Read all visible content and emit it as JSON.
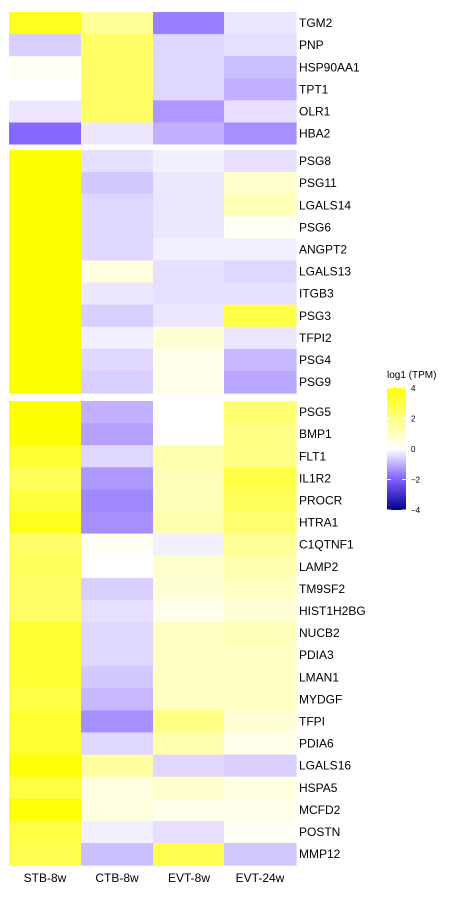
{
  "chart_data": {
    "type": "heatmap",
    "legend_title": "log1 (TPM)",
    "columns": [
      "STB-8w",
      "CTB-8w",
      "EVT-8w",
      "EVT-24w"
    ],
    "legend_ticks": [
      4,
      2,
      0,
      -2,
      -4
    ],
    "value_range": [
      -4,
      4
    ],
    "colors": {
      "low": "#00008b",
      "mid_low": "#8060ff",
      "mid": "#ffffff",
      "high": "#ffff00"
    },
    "groups": [
      {
        "rows": [
          {
            "gene": "TGM2",
            "values": [
              2.2,
              1.0,
              -1.6,
              -0.3
            ]
          },
          {
            "gene": "PNP",
            "values": [
              -0.6,
              1.5,
              -0.5,
              -0.4
            ]
          },
          {
            "gene": "HSP90AA1",
            "values": [
              0.1,
              1.5,
              -0.5,
              -0.8
            ]
          },
          {
            "gene": "TPT1",
            "values": [
              0.0,
              1.5,
              -0.5,
              -1.0
            ]
          },
          {
            "gene": "OLR1",
            "values": [
              -0.3,
              1.5,
              -1.3,
              -0.4
            ]
          },
          {
            "gene": "HBA2",
            "values": [
              -1.9,
              -0.3,
              -1.0,
              -1.4
            ]
          }
        ]
      },
      {
        "rows": [
          {
            "gene": "PSG8",
            "values": [
              3.6,
              -0.4,
              -0.2,
              -0.4
            ]
          },
          {
            "gene": "PSG11",
            "values": [
              3.5,
              -0.7,
              -0.3,
              0.5
            ]
          },
          {
            "gene": "LGALS14",
            "values": [
              3.5,
              -0.5,
              -0.3,
              0.7
            ]
          },
          {
            "gene": "PSG6",
            "values": [
              3.5,
              -0.5,
              -0.3,
              0.1
            ]
          },
          {
            "gene": "ANGPT2",
            "values": [
              3.4,
              -0.5,
              -0.2,
              -0.2
            ]
          },
          {
            "gene": "LGALS13",
            "values": [
              3.4,
              0.3,
              -0.4,
              -0.5
            ]
          },
          {
            "gene": "ITGB3",
            "values": [
              3.4,
              -0.3,
              -0.4,
              -0.4
            ]
          },
          {
            "gene": "PSG3",
            "values": [
              4.0,
              -0.6,
              -0.3,
              1.8
            ]
          },
          {
            "gene": "TFPI2",
            "values": [
              3.4,
              -0.2,
              0.4,
              -0.3
            ]
          },
          {
            "gene": "PSG4",
            "values": [
              3.4,
              -0.5,
              0.2,
              -0.9
            ]
          },
          {
            "gene": "PSG9",
            "values": [
              3.6,
              -0.6,
              0.2,
              -1.1
            ]
          }
        ]
      },
      {
        "rows": [
          {
            "gene": "PSG5",
            "values": [
              3.7,
              -1.0,
              0.0,
              1.4
            ]
          },
          {
            "gene": "BMP1",
            "values": [
              3.0,
              -1.2,
              0.0,
              1.2
            ]
          },
          {
            "gene": "FLT1",
            "values": [
              2.0,
              -0.5,
              0.8,
              1.2
            ]
          },
          {
            "gene": "IL1R2",
            "values": [
              1.6,
              -1.3,
              0.7,
              1.8
            ]
          },
          {
            "gene": "PROCR",
            "values": [
              1.9,
              -1.5,
              0.7,
              1.6
            ]
          },
          {
            "gene": "HTRA1",
            "values": [
              2.2,
              -1.4,
              0.8,
              1.4
            ]
          },
          {
            "gene": "C1QTNF1",
            "values": [
              1.5,
              0.1,
              -0.2,
              1.0
            ]
          },
          {
            "gene": "LAMP2",
            "values": [
              1.6,
              0.0,
              0.5,
              0.8
            ]
          },
          {
            "gene": "TM9SF2",
            "values": [
              1.5,
              -0.6,
              0.4,
              0.6
            ]
          },
          {
            "gene": "HIST1H2BG",
            "values": [
              1.5,
              -0.4,
              0.2,
              0.4
            ]
          },
          {
            "gene": "NUCB2",
            "values": [
              2.0,
              -0.5,
              0.6,
              0.7
            ]
          },
          {
            "gene": "PDIA3",
            "values": [
              2.0,
              -0.5,
              0.6,
              0.6
            ]
          },
          {
            "gene": "LMAN1",
            "values": [
              2.0,
              -0.7,
              0.6,
              0.6
            ]
          },
          {
            "gene": "MYDGF",
            "values": [
              1.8,
              -0.9,
              0.6,
              0.6
            ]
          },
          {
            "gene": "TFPI",
            "values": [
              2.0,
              -1.4,
              1.2,
              0.4
            ]
          },
          {
            "gene": "PDIA6",
            "values": [
              2.0,
              -0.5,
              0.8,
              0.2
            ]
          },
          {
            "gene": "LGALS16",
            "values": [
              2.4,
              0.9,
              -0.5,
              -0.6
            ]
          },
          {
            "gene": "HSPA5",
            "values": [
              1.8,
              0.3,
              0.5,
              0.3
            ]
          },
          {
            "gene": "MCFD2",
            "values": [
              2.4,
              0.3,
              0.2,
              0.2
            ]
          },
          {
            "gene": "POSTN",
            "values": [
              1.8,
              -0.2,
              -0.4,
              0.1
            ]
          },
          {
            "gene": "MMP12",
            "values": [
              1.7,
              -0.8,
              1.7,
              -0.7
            ]
          }
        ]
      }
    ]
  }
}
